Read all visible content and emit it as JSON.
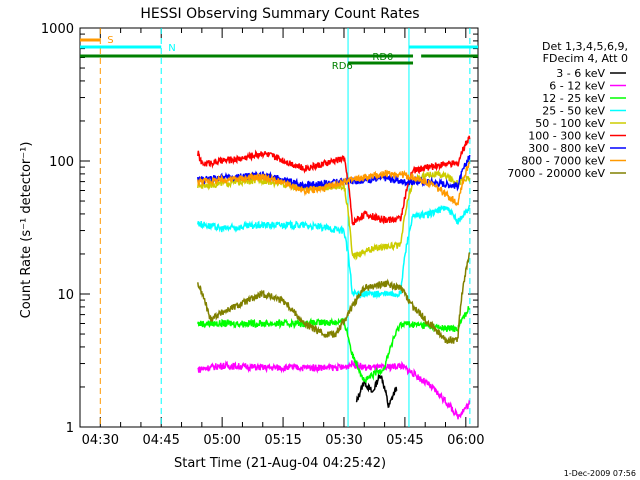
{
  "chart_data": {
    "type": "line",
    "title": "HESSI Observing Summary Count Rates",
    "xlabel": "Start Time (21-Aug-04 04:25:42)",
    "ylabel": "Count Rate (s⁻¹ detector⁻¹)",
    "y_scale": "log",
    "ylim": [
      1,
      1000
    ],
    "xlim_minutes_after_0425": [
      0,
      98
    ],
    "x_ticks": [
      {
        "label": "04:30",
        "minute": 5
      },
      {
        "label": "04:45",
        "minute": 20
      },
      {
        "label": "05:00",
        "minute": 35
      },
      {
        "label": "05:15",
        "minute": 50
      },
      {
        "label": "05:30",
        "minute": 65
      },
      {
        "label": "05:45",
        "minute": 80
      },
      {
        "label": "06:00",
        "minute": 95
      }
    ],
    "y_ticks": [
      {
        "label": "1",
        "value": 1
      },
      {
        "label": "10",
        "value": 10
      },
      {
        "label": "100",
        "value": 100
      },
      {
        "label": "1000",
        "value": 1000
      }
    ],
    "legend_header": [
      "Det 1,3,4,5,6,9,",
      "FDecim 4, Att 0"
    ],
    "legend_placement": "right",
    "series": [
      {
        "name": "3 - 6 keV",
        "color": "#000000",
        "x": [
          68,
          70,
          72,
          74,
          76,
          78
        ],
        "y": [
          1.5,
          2.2,
          1.8,
          2.5,
          1.4,
          2.0
        ]
      },
      {
        "name": "6 - 12 keV",
        "color": "#ff00ff",
        "x": [
          29,
          35,
          45,
          55,
          65,
          67,
          70,
          75,
          79,
          93,
          96
        ],
        "y": [
          2.7,
          2.9,
          2.8,
          2.8,
          2.8,
          3.0,
          2.8,
          2.8,
          2.9,
          1.2,
          1.5
        ]
      },
      {
        "name": "12 - 25 keV",
        "color": "#00ff00",
        "x": [
          29,
          35,
          45,
          55,
          65,
          67,
          70,
          75,
          79,
          85,
          90,
          93,
          96
        ],
        "y": [
          6.0,
          6.0,
          6.0,
          6.0,
          6.2,
          3.5,
          2.2,
          2.8,
          6.0,
          5.8,
          5.5,
          5.5,
          8.0
        ]
      },
      {
        "name": "25 - 50 keV",
        "color": "#00ffff",
        "x": [
          29,
          35,
          45,
          55,
          65,
          67,
          70,
          75,
          79,
          82,
          86,
          90,
          93,
          96
        ],
        "y": [
          34,
          31,
          33,
          33,
          30,
          10,
          10,
          10,
          10,
          38,
          40,
          45,
          35,
          45
        ]
      },
      {
        "name": "50 - 100 keV",
        "color": "#cccc00",
        "x": [
          29,
          35,
          45,
          55,
          65,
          67,
          70,
          75,
          79,
          82,
          86,
          90,
          93,
          96
        ],
        "y": [
          65,
          68,
          72,
          62,
          65,
          19,
          21,
          23,
          23,
          70,
          80,
          78,
          68,
          75
        ]
      },
      {
        "name": "100 - 300 keV",
        "color": "#ff0000",
        "x": [
          29,
          30,
          35,
          40,
          45,
          55,
          60,
          65,
          67,
          70,
          75,
          79,
          82,
          86,
          90,
          93,
          96
        ],
        "y": [
          115,
          95,
          100,
          105,
          115,
          88,
          95,
          105,
          34,
          40,
          36,
          37,
          85,
          90,
          95,
          95,
          155
        ]
      },
      {
        "name": "300 - 800 keV",
        "color": "#0000ff",
        "x": [
          29,
          35,
          45,
          55,
          60,
          65,
          70,
          75,
          79,
          86,
          93,
          96
        ],
        "y": [
          72,
          75,
          78,
          66,
          68,
          70,
          72,
          75,
          70,
          70,
          65,
          110
        ]
      },
      {
        "name": "800 - 7000 keV",
        "color": "#ff9900",
        "x": [
          29,
          35,
          45,
          55,
          60,
          65,
          70,
          75,
          79,
          86,
          93,
          96
        ],
        "y": [
          70,
          72,
          76,
          60,
          62,
          70,
          75,
          80,
          80,
          68,
          48,
          100
        ]
      },
      {
        "name": "7000 - 20000 keV",
        "color": "#808000",
        "x": [
          29,
          32,
          40,
          45,
          50,
          55,
          60,
          63,
          66,
          70,
          75,
          79,
          82,
          86,
          90,
          93,
          96
        ],
        "y": [
          12,
          6.5,
          8.5,
          10,
          9,
          6,
          5,
          5,
          7,
          11,
          12,
          11,
          8,
          6,
          4.5,
          4.5,
          20
        ]
      }
    ],
    "state_bars": [
      {
        "label": "S",
        "color": "#ff9900",
        "x_start": 0,
        "x_end": 5
      },
      {
        "label": "N",
        "color": "#00ffff",
        "x_start": 0,
        "x_end": 20
      },
      {
        "label": "N",
        "color": "#00ffff",
        "x_start": 81,
        "x_end": 98
      },
      {
        "label": "RD0",
        "color": "#008000",
        "x_start": 0,
        "x_end": 82
      },
      {
        "label": "RD6",
        "color": "#008000",
        "x_start": 66,
        "x_end": 82
      },
      {
        "label": "",
        "color": "#008000",
        "x_start": 84,
        "x_end": 98
      }
    ],
    "event_lines": [
      {
        "color": "#ff9900",
        "style": "dashed",
        "minute": 5
      },
      {
        "color": "#00ffff",
        "style": "dashed",
        "minute": 20
      },
      {
        "color": "#00ffff",
        "style": "solid",
        "minute": 66
      },
      {
        "color": "#00ffff",
        "style": "solid",
        "minute": 81
      },
      {
        "color": "#00ffff",
        "style": "dashed",
        "minute": 96
      }
    ],
    "timestamp": "1-Dec-2009 07:56"
  }
}
